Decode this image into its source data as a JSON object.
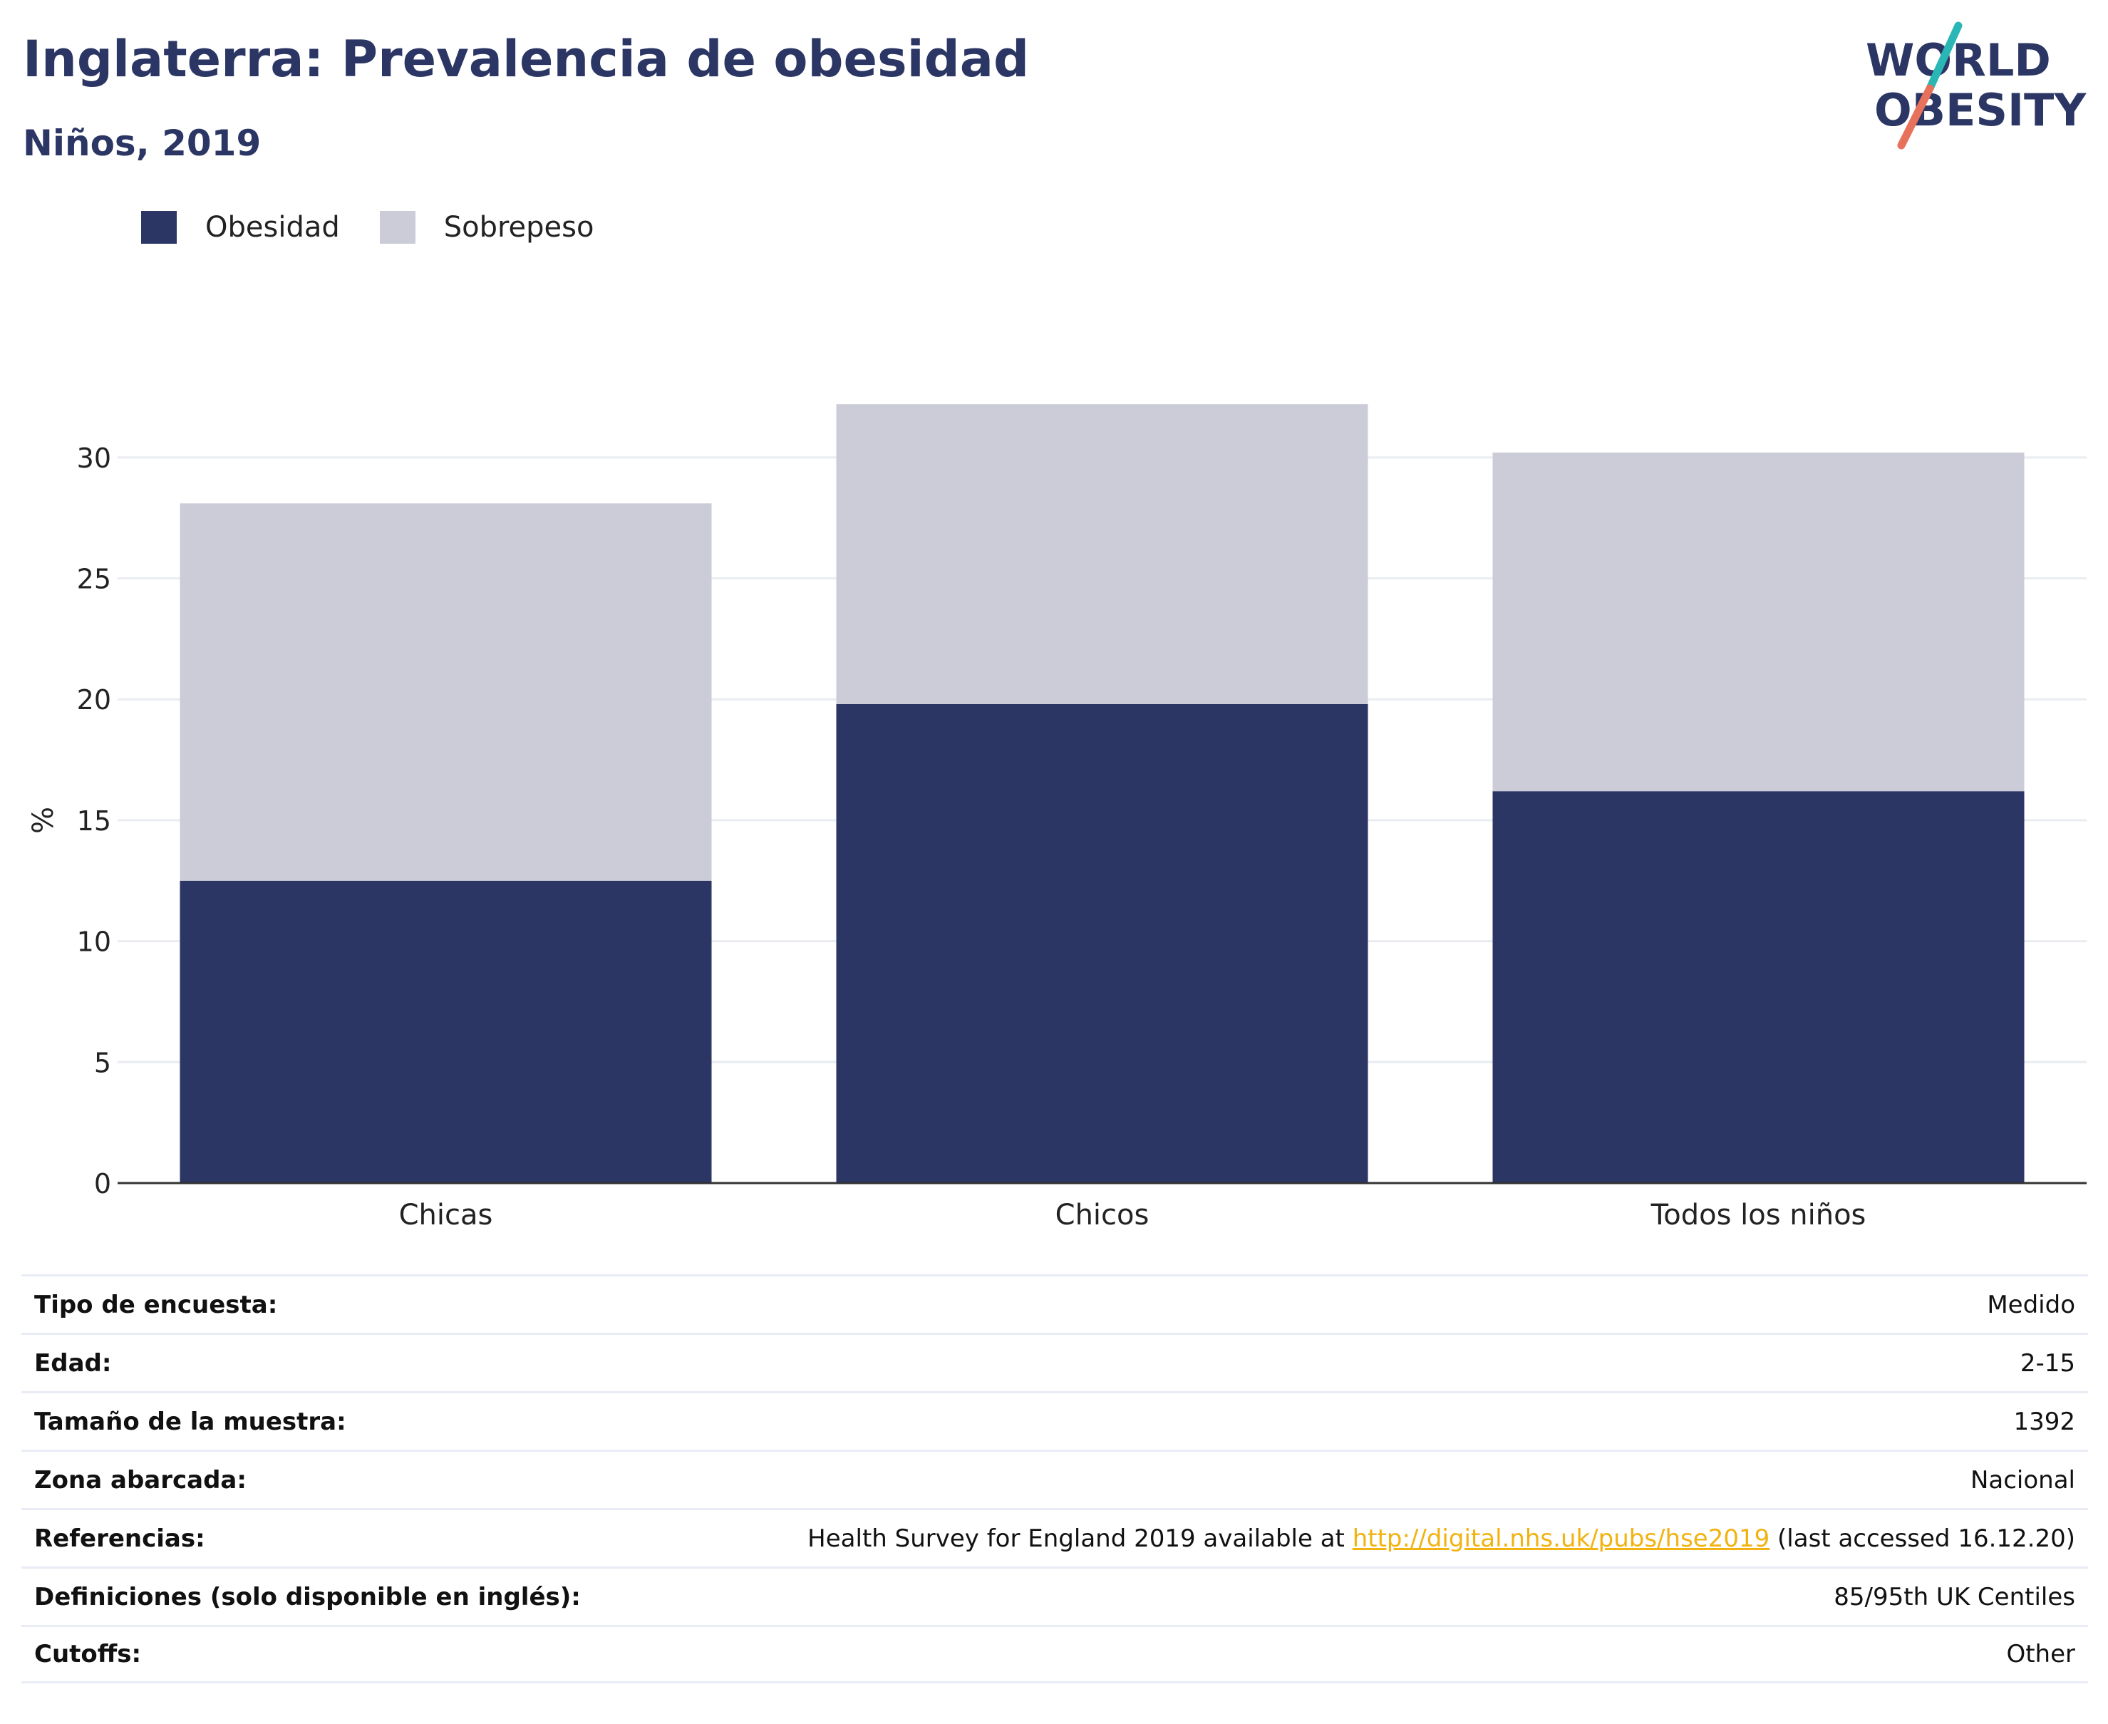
{
  "header": {
    "title": "Inglaterra: Prevalencia de obesidad",
    "subtitle": "Niños, 2019"
  },
  "logo": {
    "line1": "WORLD",
    "line2": "OBESITY",
    "colors": {
      "text": "#2b3664",
      "slash_top": "#2bb6b6",
      "slash_bottom": "#e8715c"
    }
  },
  "colors": {
    "obesity": "#2b3664",
    "overweight": "#cbccd8",
    "grid": "#e9ecf1",
    "axis": "#333333",
    "link": "#f2b311"
  },
  "chart_data": {
    "type": "bar",
    "stacked": true,
    "categories": [
      "Chicas",
      "Chicos",
      "Todos los niños"
    ],
    "series": [
      {
        "name": "Obesidad",
        "values": [
          12.5,
          19.8,
          16.2
        ]
      },
      {
        "name": "Sobrepeso",
        "values": [
          15.6,
          12.4,
          14.0
        ]
      }
    ],
    "ylabel": "%",
    "xlabel": "",
    "ylim": [
      0,
      33
    ],
    "yticks": [
      0,
      5,
      10,
      15,
      20,
      25,
      30
    ],
    "grid": true,
    "legend_position": "top-left"
  },
  "info": {
    "rows": [
      {
        "label": "Tipo de encuesta:",
        "value": "Medido"
      },
      {
        "label": "Edad:",
        "value": "2-15"
      },
      {
        "label": "Tamaño de la muestra:",
        "value": "1392"
      },
      {
        "label": "Zona abarcada:",
        "value": "Nacional"
      },
      {
        "label": "Referencias:",
        "value_prefix": "Health Survey for England 2019 available at ",
        "link": "http://digital.nhs.uk/pubs/hse2019",
        "value_suffix": " (last accessed 16.12.20)"
      },
      {
        "label": "Definiciones (solo disponible en inglés):",
        "value": "85/95th UK Centiles"
      },
      {
        "label": "Cutoffs:",
        "value": "Other"
      }
    ]
  }
}
